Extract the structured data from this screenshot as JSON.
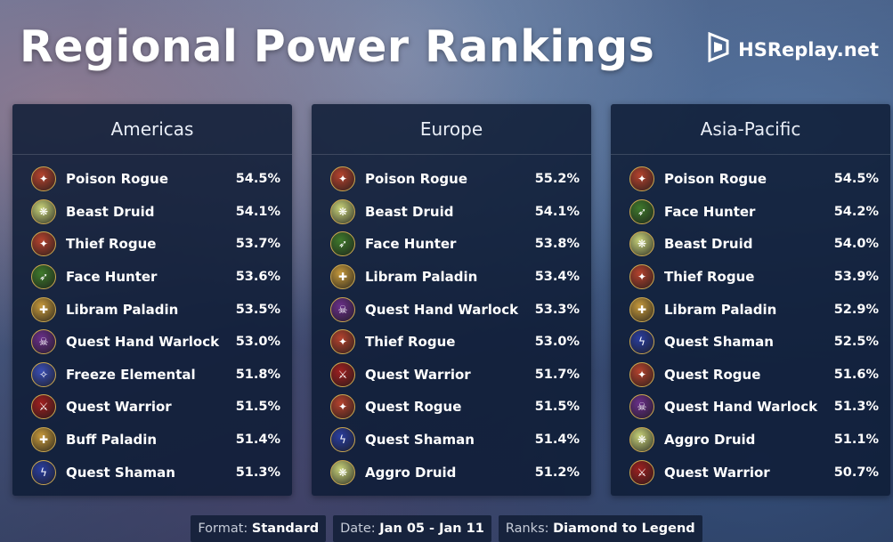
{
  "title": "Regional Power Rankings",
  "brand": {
    "name": "HSReplay.net",
    "icon": "hsreplay-logo-icon"
  },
  "class_icons": {
    "rogue": {
      "color": "#b5432e",
      "glyph": "✦"
    },
    "druid": {
      "color": "#c9d37a",
      "glyph": "❋"
    },
    "hunter": {
      "color": "#3f7a2c",
      "glyph": "➶"
    },
    "paladin": {
      "color": "#c79a3c",
      "glyph": "✚"
    },
    "warlock": {
      "color": "#6a2f8a",
      "glyph": "☠"
    },
    "shaman": {
      "color": "#2a3ea0",
      "glyph": "ϟ"
    },
    "warrior": {
      "color": "#a02020",
      "glyph": "⚔"
    },
    "mage": {
      "color": "#3a4eb5",
      "glyph": "✧"
    }
  },
  "regions": [
    {
      "name": "Americas",
      "decks": [
        {
          "name": "Poison Rogue",
          "class": "rogue",
          "winrate": "54.5%"
        },
        {
          "name": "Beast Druid",
          "class": "druid",
          "winrate": "54.1%"
        },
        {
          "name": "Thief Rogue",
          "class": "rogue",
          "winrate": "53.7%"
        },
        {
          "name": "Face Hunter",
          "class": "hunter",
          "winrate": "53.6%"
        },
        {
          "name": "Libram Paladin",
          "class": "paladin",
          "winrate": "53.5%"
        },
        {
          "name": "Quest Hand Warlock",
          "class": "warlock",
          "winrate": "53.0%"
        },
        {
          "name": "Freeze Elemental",
          "class": "mage",
          "winrate": "51.8%"
        },
        {
          "name": "Quest Warrior",
          "class": "warrior",
          "winrate": "51.5%"
        },
        {
          "name": "Buff Paladin",
          "class": "paladin",
          "winrate": "51.4%"
        },
        {
          "name": "Quest Shaman",
          "class": "shaman",
          "winrate": "51.3%"
        }
      ]
    },
    {
      "name": "Europe",
      "decks": [
        {
          "name": "Poison Rogue",
          "class": "rogue",
          "winrate": "55.2%"
        },
        {
          "name": "Beast Druid",
          "class": "druid",
          "winrate": "54.1%"
        },
        {
          "name": "Face Hunter",
          "class": "hunter",
          "winrate": "53.8%"
        },
        {
          "name": "Libram Paladin",
          "class": "paladin",
          "winrate": "53.4%"
        },
        {
          "name": "Quest Hand Warlock",
          "class": "warlock",
          "winrate": "53.3%"
        },
        {
          "name": "Thief Rogue",
          "class": "rogue",
          "winrate": "53.0%"
        },
        {
          "name": "Quest Warrior",
          "class": "warrior",
          "winrate": "51.7%"
        },
        {
          "name": "Quest Rogue",
          "class": "rogue",
          "winrate": "51.5%"
        },
        {
          "name": "Quest Shaman",
          "class": "shaman",
          "winrate": "51.4%"
        },
        {
          "name": "Aggro Druid",
          "class": "druid",
          "winrate": "51.2%"
        }
      ]
    },
    {
      "name": "Asia-Pacific",
      "decks": [
        {
          "name": "Poison Rogue",
          "class": "rogue",
          "winrate": "54.5%"
        },
        {
          "name": "Face Hunter",
          "class": "hunter",
          "winrate": "54.2%"
        },
        {
          "name": "Beast Druid",
          "class": "druid",
          "winrate": "54.0%"
        },
        {
          "name": "Thief Rogue",
          "class": "rogue",
          "winrate": "53.9%"
        },
        {
          "name": "Libram Paladin",
          "class": "paladin",
          "winrate": "52.9%"
        },
        {
          "name": "Quest Shaman",
          "class": "shaman",
          "winrate": "52.5%"
        },
        {
          "name": "Quest Rogue",
          "class": "rogue",
          "winrate": "51.6%"
        },
        {
          "name": "Quest Hand Warlock",
          "class": "warlock",
          "winrate": "51.3%"
        },
        {
          "name": "Aggro Druid",
          "class": "druid",
          "winrate": "51.1%"
        },
        {
          "name": "Quest Warrior",
          "class": "warrior",
          "winrate": "50.7%"
        }
      ]
    }
  ],
  "footer": {
    "format_label": "Format:",
    "format_value": "Standard",
    "date_label": "Date:",
    "date_value": "Jan 05 - Jan 11",
    "ranks_label": "Ranks:",
    "ranks_value": "Diamond to Legend"
  }
}
